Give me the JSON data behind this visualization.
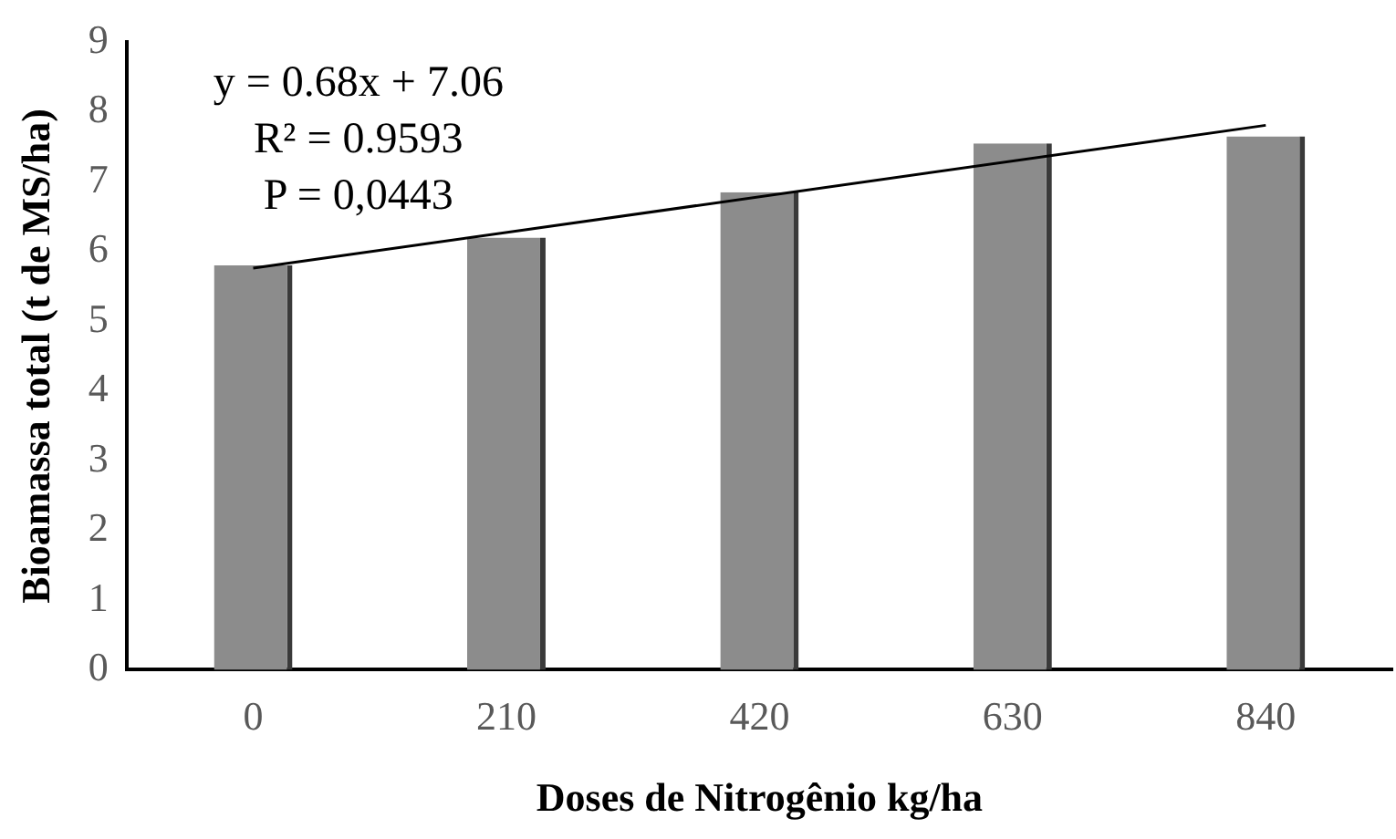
{
  "chart_data": {
    "type": "bar",
    "xlabel": "Doses de Nitrogênio kg/ha",
    "ylabel": "Bioamassa total (t de MS/ha)",
    "categories": [
      "0",
      "210",
      "420",
      "630",
      "840"
    ],
    "series": [
      {
        "color": "#8c8c8c",
        "values": [
          5.8,
          6.2,
          6.85,
          7.55,
          7.65
        ]
      },
      {
        "type": "line",
        "color": "#000000",
        "x": [
          "0",
          "840"
        ],
        "values": [
          5.76,
          7.81
        ]
      }
    ],
    "ylim": [
      0,
      9
    ],
    "yticks": [
      0,
      1,
      2,
      3,
      4,
      5,
      6,
      7,
      8,
      9
    ],
    "grid": false,
    "legend": false,
    "marker": "none",
    "line_style": "solid",
    "annotations": [
      "y = 0.68x + 7.06",
      "R² = 0.9593",
      "P = 0,0443"
    ]
  }
}
